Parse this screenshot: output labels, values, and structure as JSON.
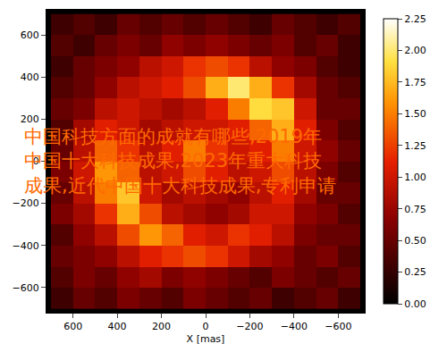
{
  "chart_data": {
    "type": "heatmap",
    "x_label": "X [mas]",
    "x": [
      650,
      550,
      450,
      350,
      250,
      150,
      50,
      -50,
      -150,
      -250,
      -350,
      -450,
      -550,
      -650
    ],
    "y": [
      -650,
      -550,
      -450,
      -350,
      -250,
      -150,
      -50,
      50,
      150,
      250,
      350,
      450,
      550,
      650
    ],
    "cells": [
      [
        0.3,
        0.5,
        0.4,
        0.6,
        0.5,
        0.4,
        0.6,
        0.5,
        0.4,
        0.5,
        0.3,
        0.4,
        0.5,
        0.3
      ],
      [
        0.4,
        0.6,
        0.5,
        0.7,
        0.8,
        0.6,
        0.7,
        0.6,
        0.5,
        0.4,
        0.6,
        0.5,
        0.4,
        0.5
      ],
      [
        0.5,
        0.6,
        0.7,
        0.9,
        1.1,
        1.2,
        1.3,
        1.2,
        1.0,
        0.8,
        0.7,
        0.5,
        0.6,
        0.4
      ],
      [
        0.4,
        0.7,
        0.9,
        1.3,
        1.6,
        1.4,
        1.1,
        1.0,
        1.2,
        1.1,
        0.9,
        0.6,
        0.5,
        0.5
      ],
      [
        0.6,
        0.8,
        1.2,
        1.7,
        1.3,
        0.9,
        0.8,
        0.7,
        0.8,
        1.0,
        1.0,
        0.7,
        0.6,
        0.4
      ],
      [
        0.5,
        0.9,
        1.5,
        1.8,
        1.0,
        0.8,
        0.9,
        0.8,
        0.7,
        0.9,
        1.1,
        0.8,
        0.5,
        0.5
      ],
      [
        0.6,
        1.0,
        1.6,
        1.4,
        0.9,
        1.0,
        1.3,
        1.1,
        0.9,
        1.0,
        1.3,
        0.9,
        0.6,
        0.4
      ],
      [
        0.5,
        0.9,
        1.4,
        1.2,
        0.9,
        1.1,
        1.5,
        1.2,
        1.0,
        1.1,
        1.5,
        1.0,
        0.7,
        0.5
      ],
      [
        0.4,
        0.8,
        1.1,
        1.0,
        0.8,
        0.9,
        1.0,
        1.0,
        1.1,
        1.4,
        1.7,
        1.1,
        0.6,
        0.4
      ],
      [
        0.5,
        0.6,
        0.9,
        1.0,
        0.9,
        0.8,
        0.9,
        1.1,
        1.5,
        1.9,
        1.8,
        1.0,
        0.5,
        0.5
      ],
      [
        0.4,
        0.5,
        0.7,
        0.9,
        1.0,
        1.1,
        1.3,
        1.7,
        2.0,
        1.7,
        1.2,
        0.8,
        0.5,
        0.4
      ],
      [
        0.3,
        0.5,
        0.6,
        0.7,
        0.9,
        1.0,
        1.2,
        1.3,
        1.2,
        0.9,
        0.7,
        0.6,
        0.4,
        0.3
      ],
      [
        0.4,
        0.3,
        0.5,
        0.6,
        0.5,
        0.7,
        0.6,
        0.7,
        0.6,
        0.5,
        0.6,
        0.4,
        0.5,
        0.3
      ],
      [
        0.3,
        0.4,
        0.3,
        0.5,
        0.4,
        0.5,
        0.4,
        0.5,
        0.4,
        0.3,
        0.5,
        0.4,
        0.3,
        0.4
      ]
    ],
    "xlim": [
      720,
      -720
    ],
    "ylim": [
      -720,
      720
    ],
    "xticks": [
      600,
      400,
      200,
      0,
      {
        "value": -200,
        "label": "−200"
      },
      {
        "value": -400,
        "label": "−400"
      },
      {
        "value": -600,
        "label": "−600"
      }
    ],
    "yticks": [
      {
        "value": -600,
        "label": "−600"
      },
      {
        "value": -400,
        "label": "−400"
      },
      {
        "value": -200,
        "label": "−200"
      },
      0,
      200,
      400,
      600
    ],
    "colorbar_range": [
      0,
      2.25
    ],
    "colorbar_ticks": [
      {
        "value": 0,
        "label": "0.00"
      },
      {
        "value": 0.25,
        "label": "0.25"
      },
      {
        "value": 0.5,
        "label": "0.50"
      },
      {
        "value": 0.75,
        "label": "0.75"
      },
      {
        "value": 1,
        "label": "1.00"
      },
      {
        "value": 1.25,
        "label": "1.25"
      },
      {
        "value": 1.5,
        "label": "1.50"
      },
      {
        "value": 1.75,
        "label": "1.75"
      },
      {
        "value": 2,
        "label": "2.00"
      },
      {
        "value": 2.25,
        "label": "2.25"
      }
    ],
    "annotations": [
      {
        "lines": [
          "中国科技方面的成就有哪些,2019年",
          "中国十大科技成果,2023年重大科技",
          "成果,近代中国十大科技成果,专利申请"
        ],
        "color": "#ff6a00"
      }
    ]
  }
}
